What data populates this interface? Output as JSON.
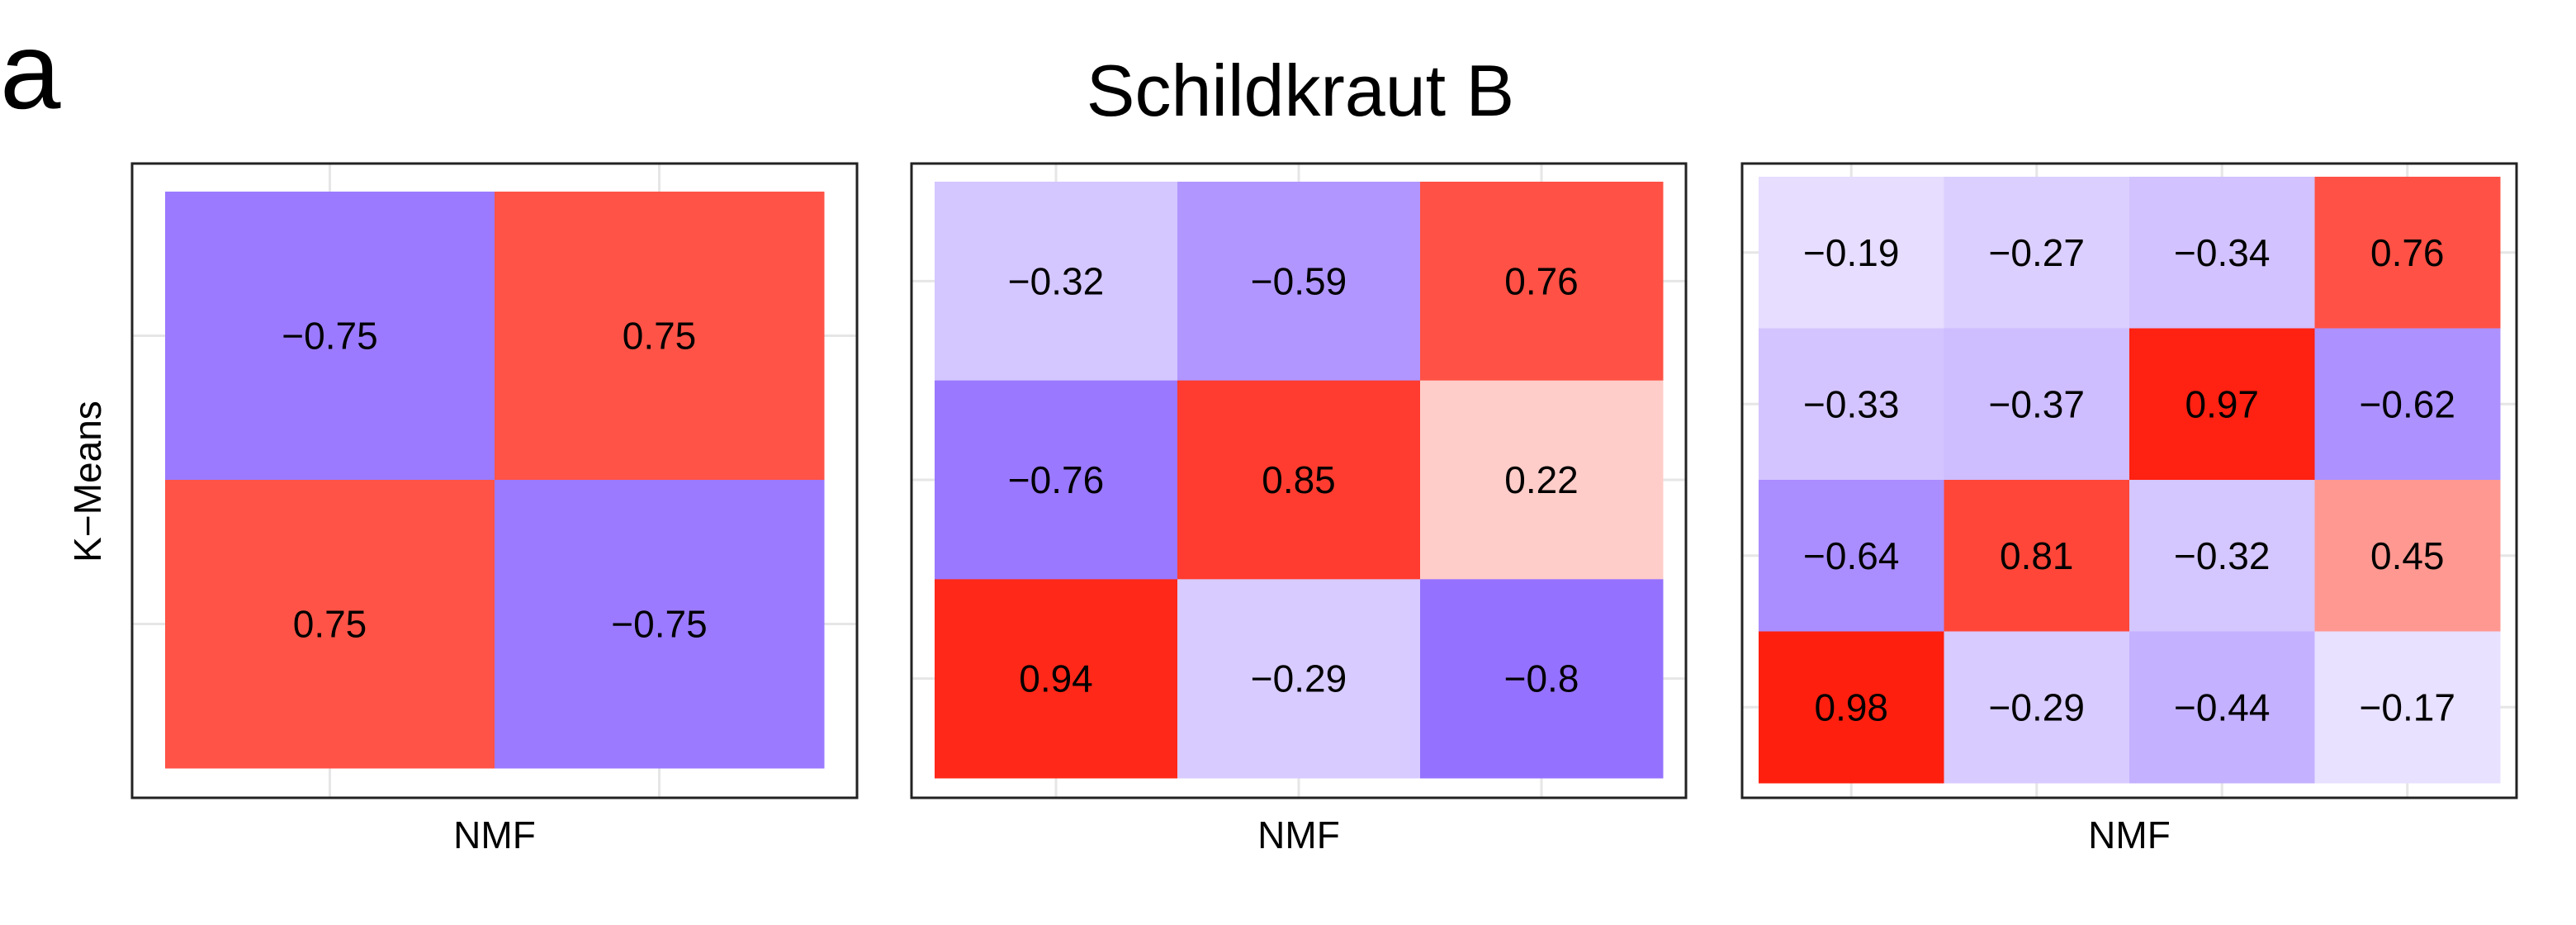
{
  "panel_label": "a",
  "title": "Schildkraut B",
  "ylabel": "K−Means",
  "colors": {
    "negative": "#7a4dff",
    "positive": "#ff1a0a",
    "neutral": "#ffffff",
    "frame": "#222222",
    "grid": "#e6e6e6"
  },
  "chart_data": [
    {
      "type": "heatmap",
      "xlabel": "NMF",
      "ylabel": "K−Means",
      "cols": 2,
      "rows": 2,
      "values": [
        [
          -0.75,
          0.75
        ],
        [
          0.75,
          -0.75
        ]
      ],
      "labels": [
        [
          "−0.75",
          "0.75"
        ],
        [
          "0.75",
          "−0.75"
        ]
      ]
    },
    {
      "type": "heatmap",
      "xlabel": "NMF",
      "cols": 3,
      "rows": 3,
      "values": [
        [
          -0.32,
          -0.59,
          0.76
        ],
        [
          -0.76,
          0.85,
          0.22
        ],
        [
          0.94,
          -0.29,
          -0.8
        ]
      ],
      "labels": [
        [
          "−0.32",
          "−0.59",
          "0.76"
        ],
        [
          "−0.76",
          "0.85",
          "0.22"
        ],
        [
          "0.94",
          "−0.29",
          "−0.8"
        ]
      ]
    },
    {
      "type": "heatmap",
      "xlabel": "NMF",
      "cols": 4,
      "rows": 4,
      "values": [
        [
          -0.19,
          -0.27,
          -0.34,
          0.76
        ],
        [
          -0.33,
          -0.37,
          0.97,
          -0.62
        ],
        [
          -0.64,
          0.81,
          -0.32,
          0.45
        ],
        [
          0.98,
          -0.29,
          -0.44,
          -0.17
        ]
      ],
      "labels": [
        [
          "−0.19",
          "−0.27",
          "−0.34",
          "0.76"
        ],
        [
          "−0.33",
          "−0.37",
          "0.97",
          "−0.62"
        ],
        [
          "−0.64",
          "0.81",
          "−0.32",
          "0.45"
        ],
        [
          "0.98",
          "−0.29",
          "−0.44",
          "−0.17"
        ]
      ]
    }
  ]
}
